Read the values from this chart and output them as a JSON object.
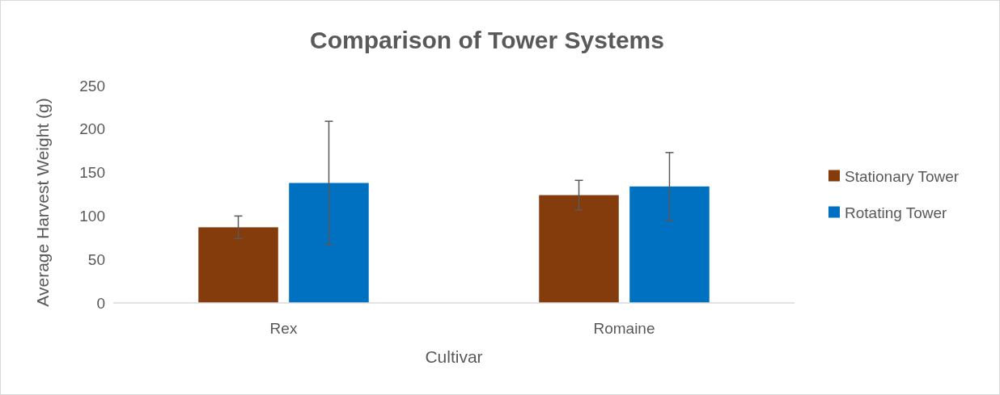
{
  "chart_data": {
    "type": "bar",
    "title": "Comparison of Tower Systems",
    "xlabel": "Cultivar",
    "ylabel": "Average Harvest Weight (g)",
    "categories": [
      "Rex",
      "Romaine"
    ],
    "series": [
      {
        "name": "Stationary Tower",
        "color": "#843c0c",
        "values": [
          87,
          124
        ],
        "errors": [
          13,
          17
        ]
      },
      {
        "name": "Rotating Tower",
        "color": "#0070c0",
        "values": [
          138,
          134
        ],
        "errors": [
          71,
          39
        ]
      }
    ],
    "ylim": [
      0,
      250
    ],
    "yticks": [
      0,
      50,
      100,
      150,
      200,
      250
    ],
    "grid": false,
    "legend": "right"
  }
}
